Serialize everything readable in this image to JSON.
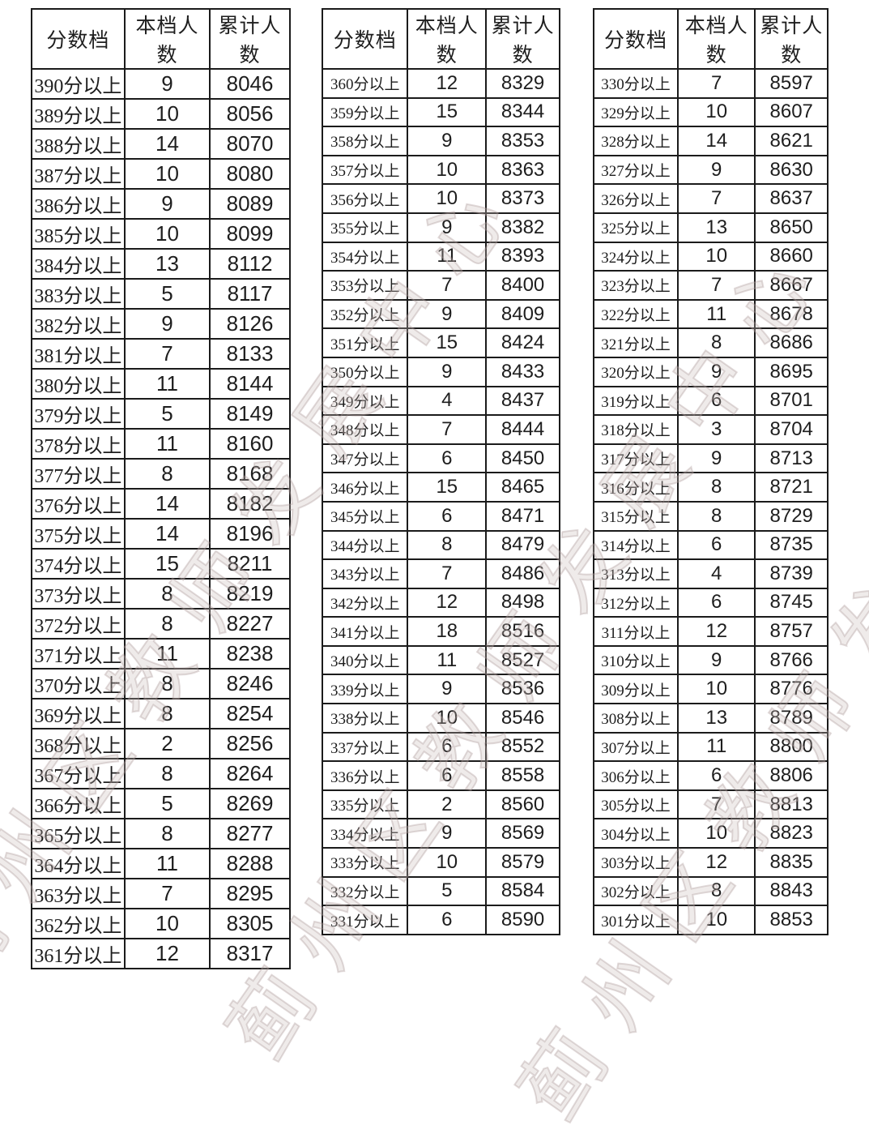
{
  "table_columns": [
    "分数档",
    "本档人数",
    "累计人数"
  ],
  "tier_suffix": "分以上",
  "watermark": {
    "text": "蓟州区教师发展中心",
    "color": "#cbbcba"
  },
  "tables": [
    {
      "name": "scores-390-361",
      "rows": [
        [
          "390",
          9,
          8046
        ],
        [
          "389",
          10,
          8056
        ],
        [
          "388",
          14,
          8070
        ],
        [
          "387",
          10,
          8080
        ],
        [
          "386",
          9,
          8089
        ],
        [
          "385",
          10,
          8099
        ],
        [
          "384",
          13,
          8112
        ],
        [
          "383",
          5,
          8117
        ],
        [
          "382",
          9,
          8126
        ],
        [
          "381",
          7,
          8133
        ],
        [
          "380",
          11,
          8144
        ],
        [
          "379",
          5,
          8149
        ],
        [
          "378",
          11,
          8160
        ],
        [
          "377",
          8,
          8168
        ],
        [
          "376",
          14,
          8182
        ],
        [
          "375",
          14,
          8196
        ],
        [
          "374",
          15,
          8211
        ],
        [
          "373",
          8,
          8219
        ],
        [
          "372",
          8,
          8227
        ],
        [
          "371",
          11,
          8238
        ],
        [
          "370",
          8,
          8246
        ],
        [
          "369",
          8,
          8254
        ],
        [
          "368",
          2,
          8256
        ],
        [
          "367",
          8,
          8264
        ],
        [
          "366",
          5,
          8269
        ],
        [
          "365",
          8,
          8277
        ],
        [
          "364",
          11,
          8288
        ],
        [
          "363",
          7,
          8295
        ],
        [
          "362",
          10,
          8305
        ],
        [
          "361",
          12,
          8317
        ]
      ]
    },
    {
      "name": "scores-360-331",
      "rows": [
        [
          "360",
          12,
          8329
        ],
        [
          "359",
          15,
          8344
        ],
        [
          "358",
          9,
          8353
        ],
        [
          "357",
          10,
          8363
        ],
        [
          "356",
          10,
          8373
        ],
        [
          "355",
          9,
          8382
        ],
        [
          "354",
          11,
          8393
        ],
        [
          "353",
          7,
          8400
        ],
        [
          "352",
          9,
          8409
        ],
        [
          "351",
          15,
          8424
        ],
        [
          "350",
          9,
          8433
        ],
        [
          "349",
          4,
          8437
        ],
        [
          "348",
          7,
          8444
        ],
        [
          "347",
          6,
          8450
        ],
        [
          "346",
          15,
          8465
        ],
        [
          "345",
          6,
          8471
        ],
        [
          "344",
          8,
          8479
        ],
        [
          "343",
          7,
          8486
        ],
        [
          "342",
          12,
          8498
        ],
        [
          "341",
          18,
          8516
        ],
        [
          "340",
          11,
          8527
        ],
        [
          "339",
          9,
          8536
        ],
        [
          "338",
          10,
          8546
        ],
        [
          "337",
          6,
          8552
        ],
        [
          "336",
          6,
          8558
        ],
        [
          "335",
          2,
          8560
        ],
        [
          "334",
          9,
          8569
        ],
        [
          "333",
          10,
          8579
        ],
        [
          "332",
          5,
          8584
        ],
        [
          "331",
          6,
          8590
        ]
      ]
    },
    {
      "name": "scores-330-301",
      "rows": [
        [
          "330",
          7,
          8597
        ],
        [
          "329",
          10,
          8607
        ],
        [
          "328",
          14,
          8621
        ],
        [
          "327",
          9,
          8630
        ],
        [
          "326",
          7,
          8637
        ],
        [
          "325",
          13,
          8650
        ],
        [
          "324",
          10,
          8660
        ],
        [
          "323",
          7,
          8667
        ],
        [
          "322",
          11,
          8678
        ],
        [
          "321",
          8,
          8686
        ],
        [
          "320",
          9,
          8695
        ],
        [
          "319",
          6,
          8701
        ],
        [
          "318",
          3,
          8704
        ],
        [
          "317",
          9,
          8713
        ],
        [
          "316",
          8,
          8721
        ],
        [
          "315",
          8,
          8729
        ],
        [
          "314",
          6,
          8735
        ],
        [
          "313",
          4,
          8739
        ],
        [
          "312",
          6,
          8745
        ],
        [
          "311",
          12,
          8757
        ],
        [
          "310",
          9,
          8766
        ],
        [
          "309",
          10,
          8776
        ],
        [
          "308",
          13,
          8789
        ],
        [
          "307",
          11,
          8800
        ],
        [
          "306",
          6,
          8806
        ],
        [
          "305",
          7,
          8813
        ],
        [
          "304",
          10,
          8823
        ],
        [
          "303",
          12,
          8835
        ],
        [
          "302",
          8,
          8843
        ],
        [
          "301",
          10,
          8853
        ]
      ]
    }
  ]
}
